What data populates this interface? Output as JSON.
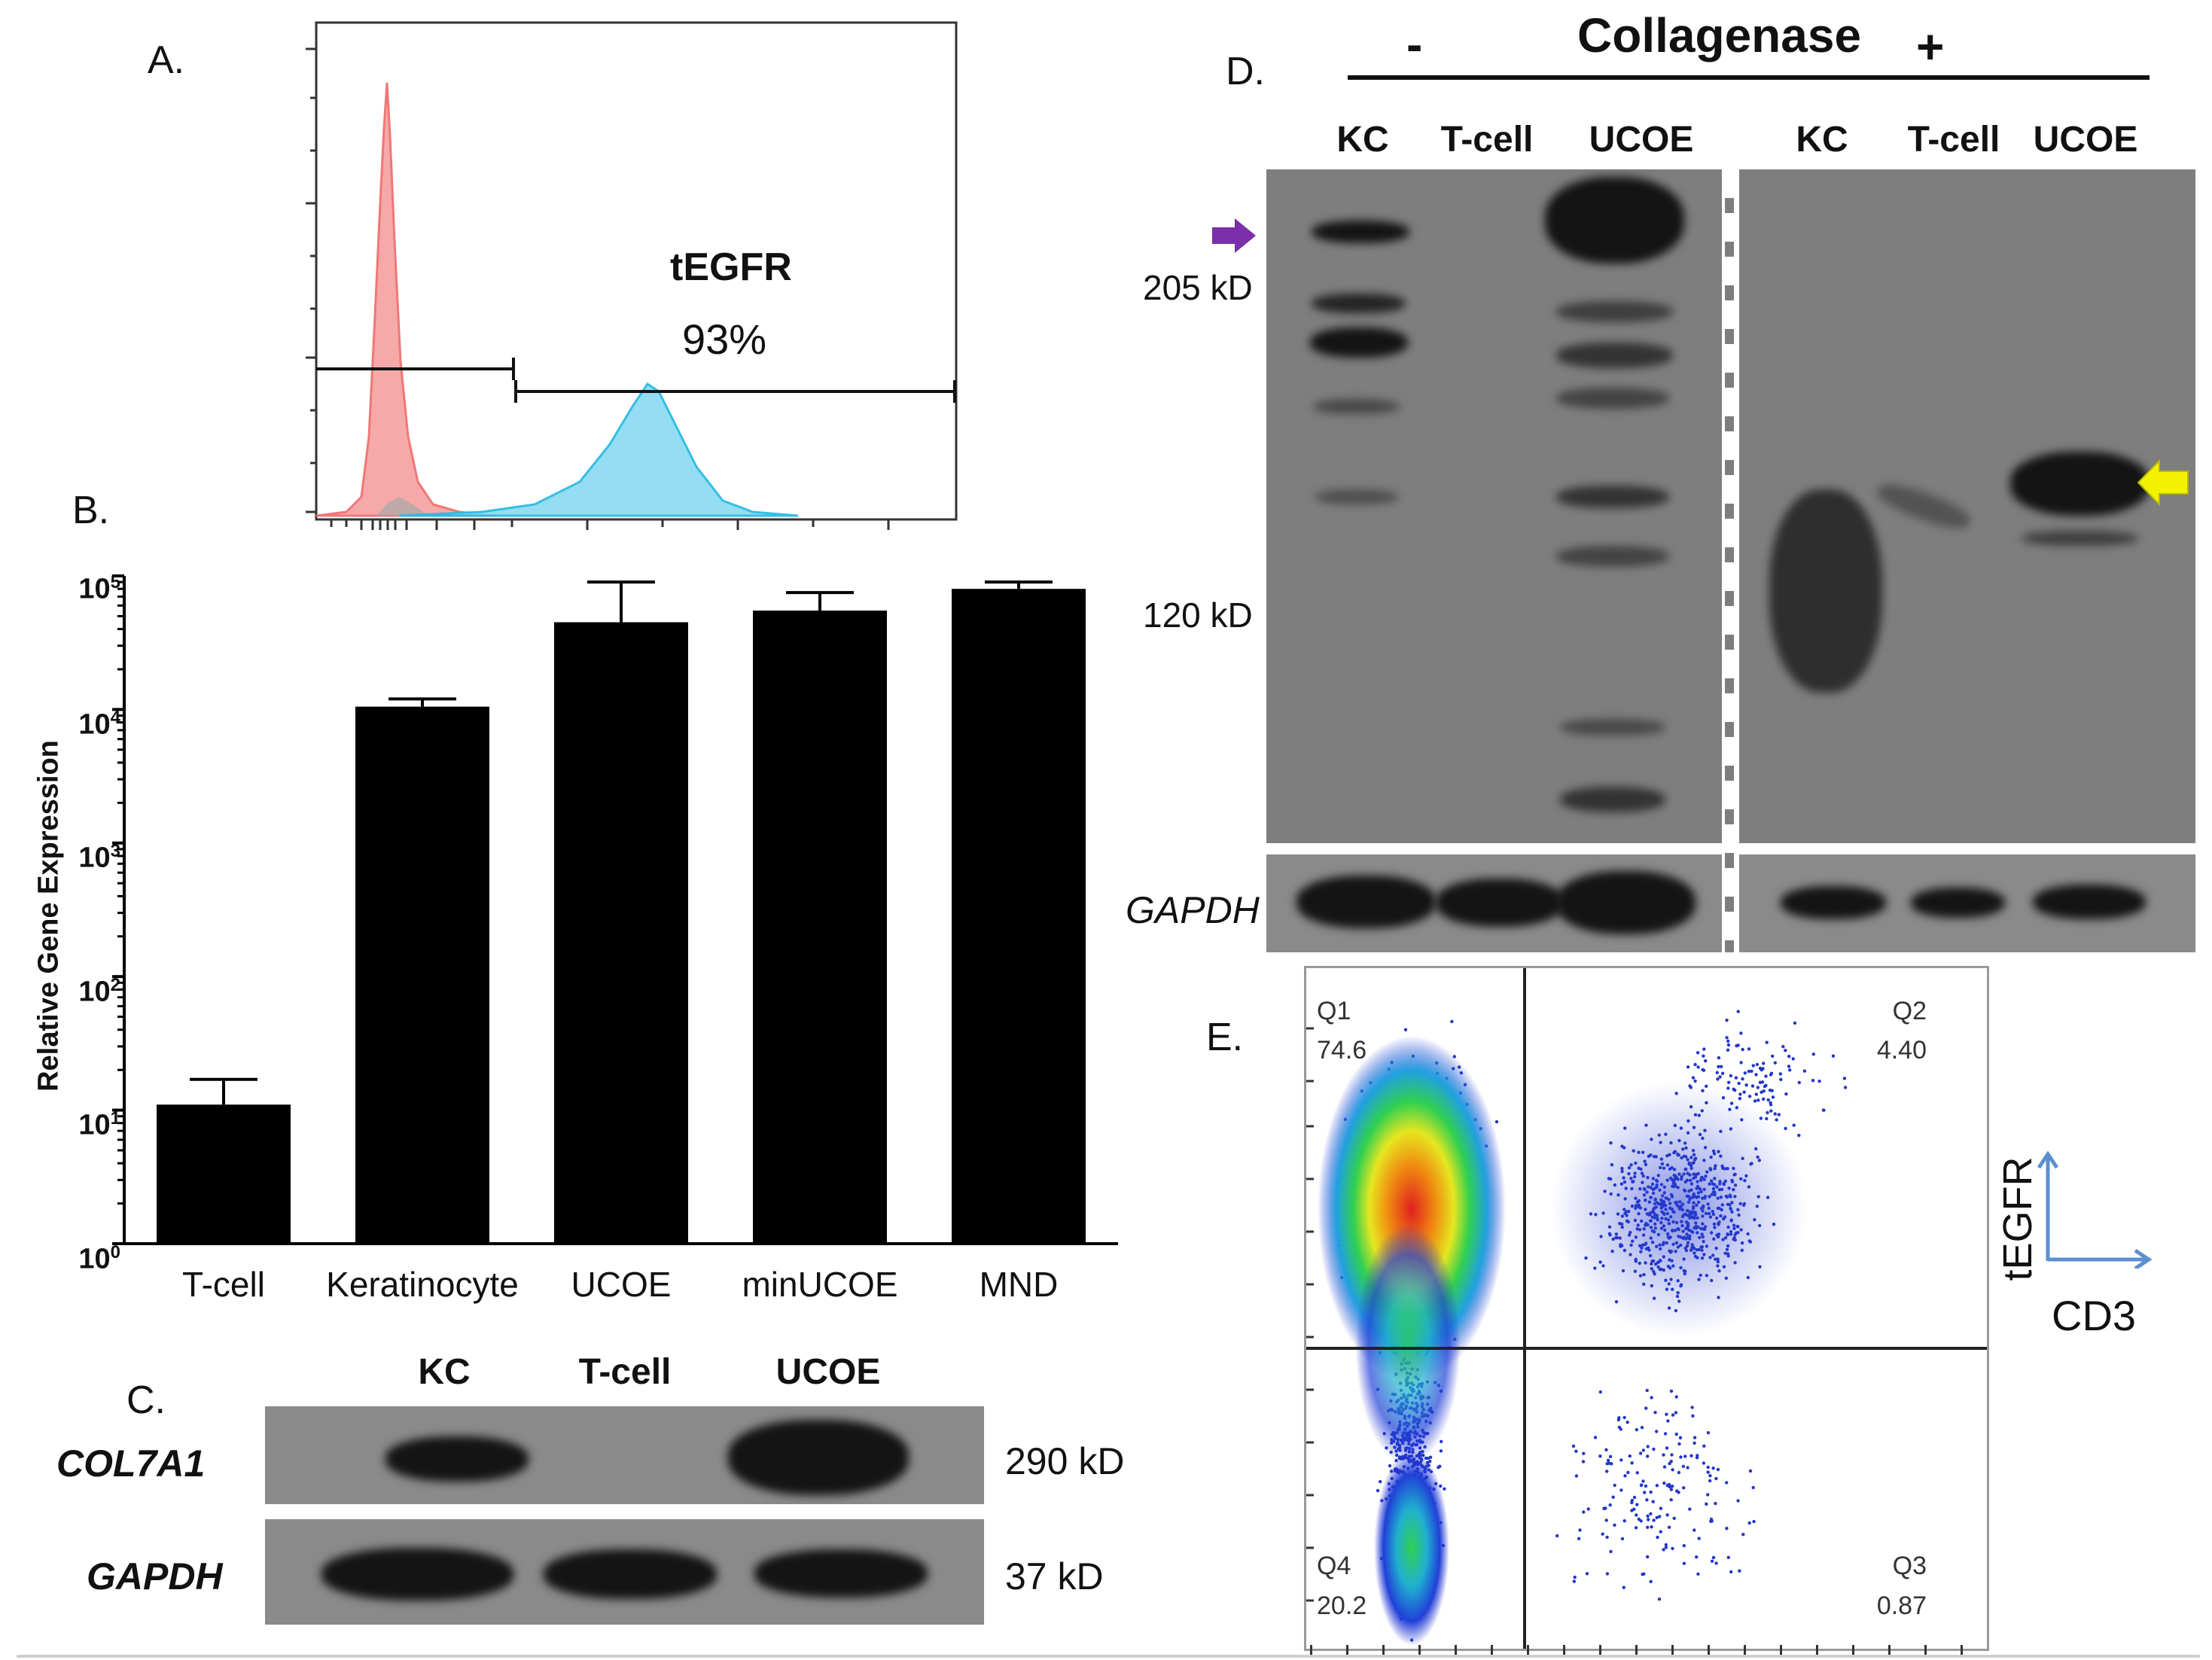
{
  "panelA": {
    "label": "A.",
    "gate_name": "tEGFR",
    "gate_percent": "93%",
    "colors": {
      "control": "#f08080",
      "control_fill": "#f6a5a5",
      "transduced": "#31c6e8",
      "transduced_fill": "#8fdcf2"
    }
  },
  "panelB": {
    "label": "B.",
    "ylabel": "Relative Gene Expression",
    "ytick_labels": [
      {
        "base": "10",
        "exp": "0"
      },
      {
        "base": "10",
        "exp": "1"
      },
      {
        "base": "10",
        "exp": "2"
      },
      {
        "base": "10",
        "exp": "3"
      },
      {
        "base": "10",
        "exp": "4"
      },
      {
        "base": "10",
        "exp": "5"
      }
    ]
  },
  "chart_data": {
    "type": "bar",
    "categories": [
      "T-cell",
      "Keratinocyte",
      "UCOE",
      "minUCOE",
      "MND"
    ],
    "values": [
      11,
      10500,
      45000,
      55000,
      80000
    ],
    "error_upper": [
      17,
      12000,
      90000,
      75000,
      90000
    ],
    "title": "",
    "xlabel": "",
    "ylabel": "Relative Gene Expression",
    "yscale": "log",
    "ylim": [
      1,
      100000
    ],
    "bar_color": "#000000"
  },
  "panelC": {
    "label": "C.",
    "lanes": [
      "KC",
      "T-cell",
      "UCOE"
    ],
    "rows": [
      {
        "name": "COL7A1",
        "mw": "290 kD"
      },
      {
        "name": "GAPDH",
        "mw": "37 kD"
      }
    ]
  },
  "panelD": {
    "label": "D.",
    "enzyme": "Collagenase",
    "minus": "-",
    "plus": "+",
    "lanes_minus": [
      "KC",
      "T-cell",
      "UCOE"
    ],
    "lanes_plus": [
      "KC",
      "T-cell",
      "UCOE"
    ],
    "markers": [
      "205 kD",
      "120 kD"
    ],
    "loading_control": "GAPDH",
    "arrow_colors": {
      "full_length": "#7b2fa8",
      "cleaved": "#f2f200"
    }
  },
  "panelE": {
    "label": "E.",
    "quadrants": [
      {
        "name": "Q1",
        "value": "74.6"
      },
      {
        "name": "Q2",
        "value": "4.40"
      },
      {
        "name": "Q3",
        "value": "0.87"
      },
      {
        "name": "Q4",
        "value": "20.2"
      }
    ],
    "y_axis": "tEGFR",
    "x_axis": "CD3",
    "axis_arrow_color": "#5b8fd0"
  }
}
